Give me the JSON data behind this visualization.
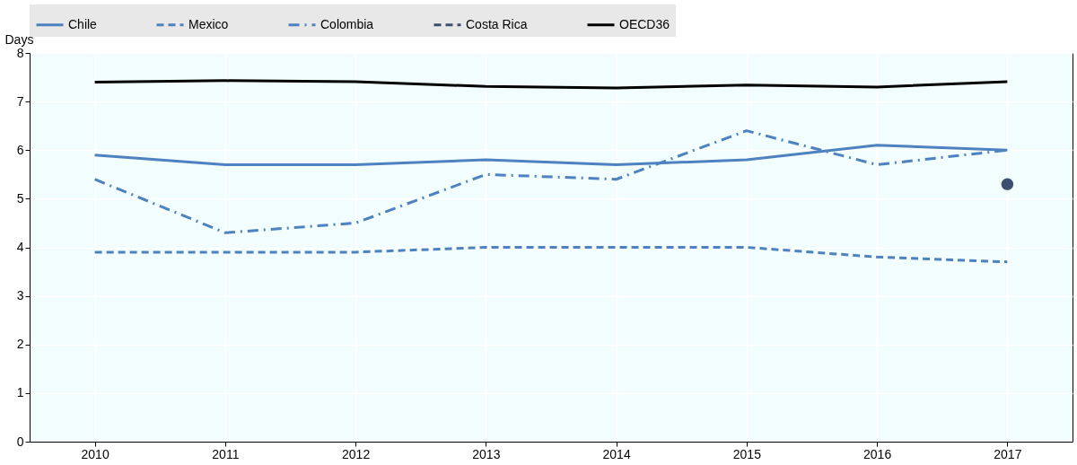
{
  "chart_data": {
    "type": "line",
    "ylabel": "Days",
    "categories": [
      "2010",
      "2011",
      "2012",
      "2013",
      "2014",
      "2015",
      "2016",
      "2017"
    ],
    "series": [
      {
        "name": "Chile",
        "color": "#4e81bf",
        "line_style": "solid",
        "values": [
          5.9,
          5.7,
          5.7,
          5.8,
          5.7,
          5.8,
          6.1,
          6.0
        ]
      },
      {
        "name": "Mexico",
        "color": "#4e81bf",
        "line_style": "dashed",
        "values": [
          3.9,
          3.9,
          3.9,
          4.0,
          4.0,
          4.0,
          3.8,
          3.7
        ]
      },
      {
        "name": "Colombia",
        "color": "#4e81bf",
        "line_style": "dashdot",
        "values": [
          5.4,
          4.3,
          4.5,
          5.5,
          5.4,
          6.4,
          5.7,
          6.0
        ]
      },
      {
        "name": "Costa Rica",
        "color": "#3d4f6f",
        "line_style": "dashed",
        "marker": "circle",
        "values": [
          null,
          null,
          null,
          null,
          null,
          null,
          null,
          5.3
        ]
      },
      {
        "name": "OECD36",
        "color": "#000000",
        "line_style": "solid",
        "values": [
          7.4,
          7.43,
          7.41,
          7.31,
          7.28,
          7.34,
          7.3,
          7.41
        ]
      }
    ],
    "ylim": [
      0,
      8
    ],
    "yticks": [
      0,
      1,
      2,
      3,
      4,
      5,
      6,
      7,
      8
    ],
    "grid": true,
    "legend": "top"
  }
}
